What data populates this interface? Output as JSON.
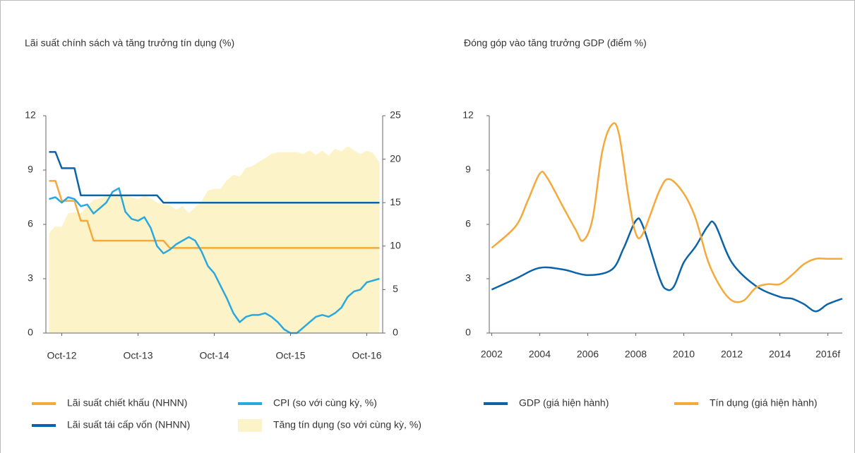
{
  "chart_data": [
    {
      "type": "line",
      "title": "Lãi suất chính sách và tăng trưởng tín dụng (%)",
      "categories": [
        null,
        null,
        "Oct-12",
        null,
        null,
        null,
        null,
        null,
        null,
        null,
        null,
        null,
        null,
        null,
        "Oct-13",
        null,
        null,
        null,
        null,
        null,
        null,
        null,
        null,
        null,
        null,
        null,
        "Oct-14",
        null,
        null,
        null,
        null,
        null,
        null,
        null,
        null,
        null,
        null,
        null,
        "Oct-15",
        null,
        null,
        null,
        null,
        null,
        null,
        null,
        null,
        null,
        null,
        null,
        "Oct-16",
        null,
        null
      ],
      "ylim": [
        0,
        12
      ],
      "yticks": [
        0,
        3,
        6,
        9,
        12
      ],
      "y2lim": [
        0,
        25
      ],
      "y2ticks": [
        0,
        5,
        10,
        15,
        20,
        25
      ],
      "series": [
        {
          "name": "Lãi suất chiết khấu (NHNN)",
          "color": "#f5a93a",
          "values": [
            8.4,
            8.4,
            7.3,
            7.3,
            7.3,
            6.2,
            6.2,
            5.1,
            5.1,
            5.1,
            5.1,
            5.1,
            5.1,
            5.1,
            5.1,
            5.1,
            5.1,
            5.1,
            5.1,
            4.7,
            4.7,
            4.7,
            4.7,
            4.7,
            4.7,
            4.7,
            4.7,
            4.7,
            4.7,
            4.7,
            4.7,
            4.7,
            4.7,
            4.7,
            4.7,
            4.7,
            4.7,
            4.7,
            4.7,
            4.7,
            4.7,
            4.7,
            4.7,
            4.7,
            4.7,
            4.7,
            4.7,
            4.7,
            4.7,
            4.7,
            4.7,
            4.7,
            4.7
          ]
        },
        {
          "name": "CPI (so với cùng kỳ, %)",
          "color": "#2aa8e0",
          "values": [
            7.4,
            7.5,
            7.2,
            7.5,
            7.4,
            7.0,
            7.1,
            6.6,
            6.9,
            7.2,
            7.8,
            8.0,
            6.7,
            6.3,
            6.2,
            6.4,
            5.8,
            4.8,
            4.4,
            4.6,
            4.9,
            5.1,
            5.3,
            5.1,
            4.5,
            3.7,
            3.3,
            2.6,
            1.9,
            1.1,
            0.6,
            0.9,
            1.0,
            1.0,
            1.1,
            0.9,
            0.6,
            0.2,
            0.0,
            0.0,
            0.3,
            0.6,
            0.9,
            1.0,
            0.9,
            1.1,
            1.4,
            2.0,
            2.3,
            2.4,
            2.8,
            2.9,
            3.0
          ]
        },
        {
          "name": "Lãi suất tái cấp vốn (NHNN)",
          "color": "#0b63a8",
          "values": [
            10,
            10,
            9.1,
            9.1,
            9.1,
            7.6,
            7.6,
            7.6,
            7.6,
            7.6,
            7.6,
            7.6,
            7.6,
            7.6,
            7.6,
            7.6,
            7.6,
            7.6,
            7.2,
            7.2,
            7.2,
            7.2,
            7.2,
            7.2,
            7.2,
            7.2,
            7.2,
            7.2,
            7.2,
            7.2,
            7.2,
            7.2,
            7.2,
            7.2,
            7.2,
            7.2,
            7.2,
            7.2,
            7.2,
            7.2,
            7.2,
            7.2,
            7.2,
            7.2,
            7.2,
            7.2,
            7.2,
            7.2,
            7.2,
            7.2,
            7.2,
            7.2,
            7.2
          ]
        },
        {
          "name": "Tăng tín dụng (so với cùng kỳ, %)",
          "color": "#fdf3c8",
          "type": "area",
          "axis": "y2",
          "values": [
            11.5,
            12.3,
            12.2,
            13.8,
            13.9,
            13.8,
            14.6,
            15.3,
            15.5,
            15.8,
            16.0,
            16.0,
            15.8,
            15.6,
            15.4,
            15.8,
            15.5,
            15.0,
            14.8,
            14.7,
            14.2,
            14.6,
            13.8,
            14.5,
            15.2,
            16.4,
            16.6,
            16.6,
            17.6,
            18.2,
            18.0,
            19.0,
            19.2,
            19.7,
            20.1,
            20.6,
            20.8,
            20.8,
            20.8,
            20.8,
            20.6,
            21.0,
            20.5,
            21.0,
            20.4,
            21.2,
            20.9,
            21.5,
            21.0,
            20.6,
            21.0,
            20.7,
            19.6
          ]
        }
      ]
    },
    {
      "type": "line",
      "title": "Đóng góp vào tăng trưởng GDP (điểm %)",
      "xlim": [
        2001.9,
        2016.6
      ],
      "xticks": [
        2002,
        2004,
        2006,
        2008,
        2010,
        2012,
        2014,
        {
          "value": 2016,
          "label": "2016f"
        }
      ],
      "ylim": [
        0,
        12
      ],
      "yticks": [
        0,
        3,
        6,
        9,
        12
      ],
      "series": [
        {
          "name": "GDP (giá hiện hành)",
          "color": "#0b63a8",
          "x": [
            2002,
            2003,
            2004,
            2005,
            2006,
            2007,
            2007.5,
            2008,
            2008.3,
            2009,
            2009.3,
            2009.6,
            2010,
            2010.5,
            2011,
            2011.3,
            2012,
            2013,
            2014,
            2014.5,
            2015,
            2015.5,
            2016,
            2016.6
          ],
          "values": [
            2.4,
            3.0,
            3.6,
            3.5,
            3.2,
            3.5,
            4.7,
            6.2,
            5.9,
            3.0,
            2.4,
            2.6,
            3.9,
            4.8,
            5.9,
            6.0,
            3.9,
            2.6,
            2.0,
            1.9,
            1.6,
            1.2,
            1.6,
            1.9
          ]
        },
        {
          "name": "Tín dụng (giá hiện hành)",
          "color": "#f5a93a",
          "x": [
            2002,
            2003,
            2003.5,
            2004,
            2004.3,
            2005,
            2005.5,
            2005.8,
            2006.2,
            2006.6,
            2007,
            2007.3,
            2007.7,
            2008,
            2008.3,
            2009,
            2009.4,
            2010,
            2010.5,
            2011,
            2011.5,
            2012,
            2012.5,
            2013,
            2013.5,
            2014,
            2014.5,
            2015,
            2015.5,
            2016,
            2016.6
          ],
          "values": [
            4.7,
            5.9,
            7.3,
            8.8,
            8.6,
            6.9,
            5.7,
            5.1,
            6.3,
            10.0,
            11.5,
            11.0,
            7.5,
            5.5,
            5.5,
            7.9,
            8.5,
            7.7,
            6.3,
            4.0,
            2.6,
            1.8,
            1.8,
            2.5,
            2.7,
            2.7,
            3.2,
            3.8,
            4.1,
            4.1,
            4.1
          ]
        }
      ]
    }
  ]
}
